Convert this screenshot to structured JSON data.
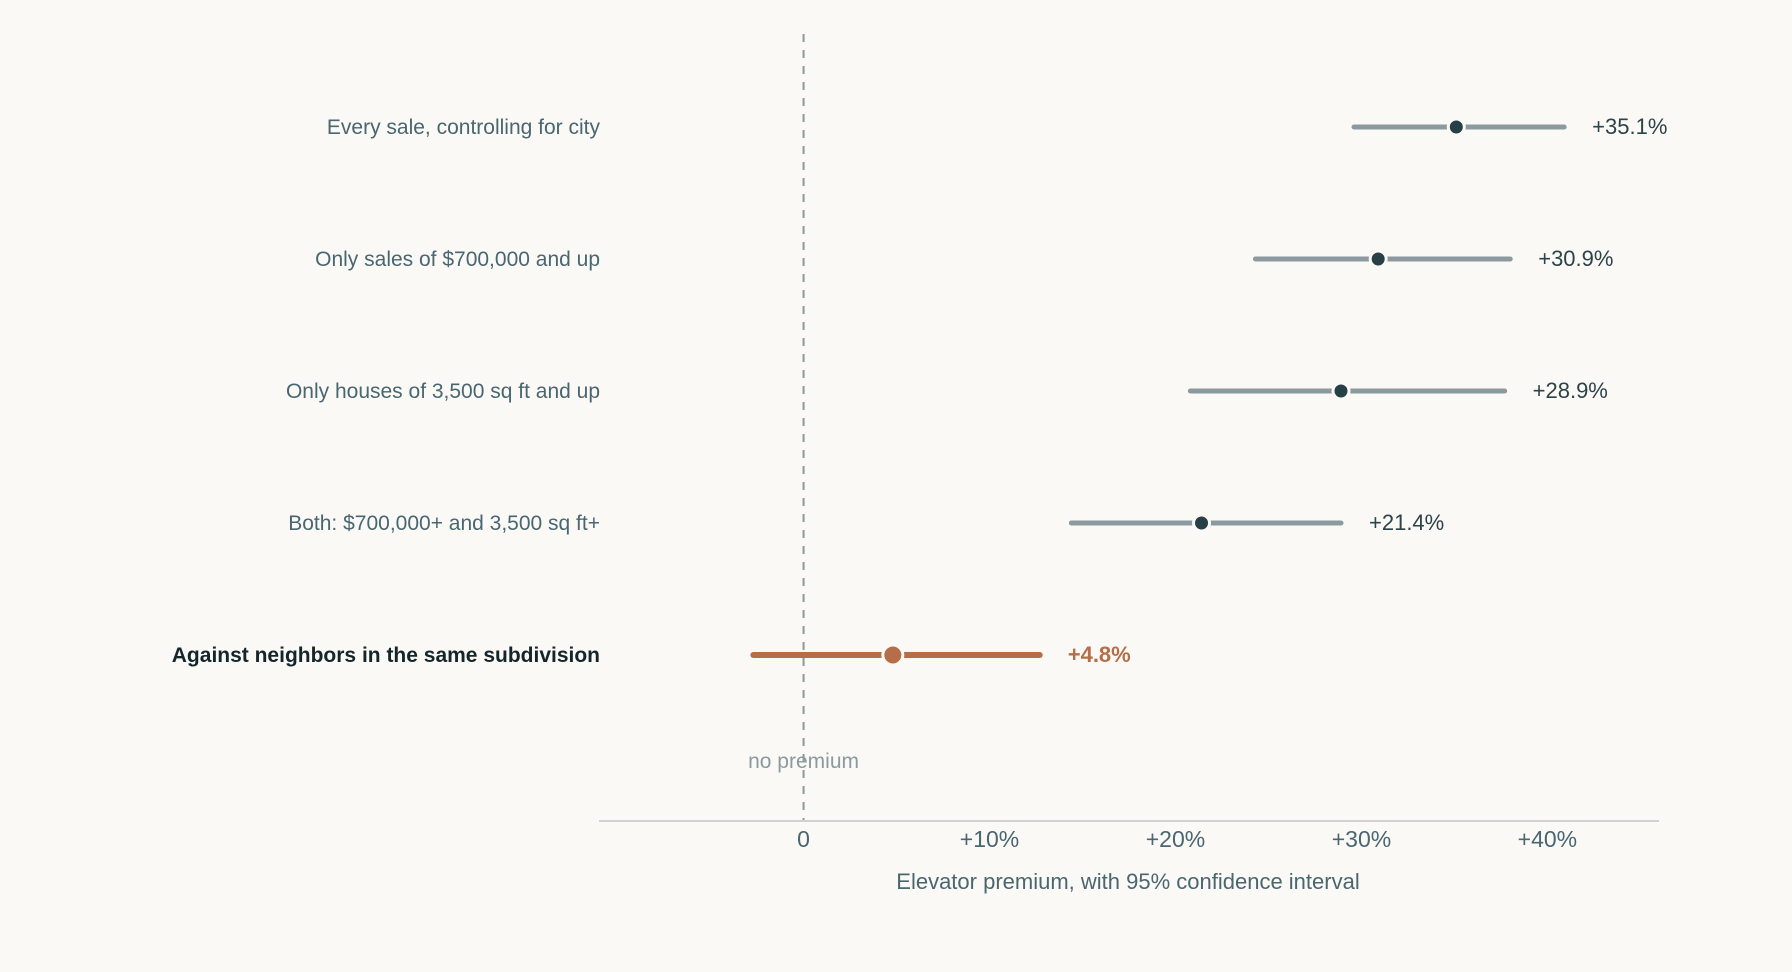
{
  "chart_data": {
    "type": "forest",
    "title": "",
    "xlabel": "Elevator premium, with 95% confidence interval",
    "xlim": [
      -11,
      46
    ],
    "x_ticks": [
      {
        "value": 0,
        "label": "0"
      },
      {
        "value": 10,
        "label": "+10%"
      },
      {
        "value": 20,
        "label": "+20%"
      },
      {
        "value": 30,
        "label": "+30%"
      },
      {
        "value": 40,
        "label": "+40%"
      }
    ],
    "reference_line": {
      "value": 0,
      "label": "no premium",
      "style": "dashed"
    },
    "grid": false,
    "rows": [
      {
        "label": "Every sale, controlling for city",
        "estimate": 35.1,
        "ci_low": 29.6,
        "ci_high": 40.9,
        "value_label": "+35.1%",
        "highlight": false
      },
      {
        "label": "Only sales of $700,000 and up",
        "estimate": 30.9,
        "ci_low": 24.3,
        "ci_high": 38.0,
        "value_label": "+30.9%",
        "highlight": false
      },
      {
        "label": "Only houses of 3,500 sq ft and up",
        "estimate": 28.9,
        "ci_low": 20.8,
        "ci_high": 37.7,
        "value_label": "+28.9%",
        "highlight": false
      },
      {
        "label": "Both: $700,000+ and 3,500 sq ft+",
        "estimate": 21.4,
        "ci_low": 14.4,
        "ci_high": 28.9,
        "value_label": "+21.4%",
        "highlight": false
      },
      {
        "label": "Against neighbors in the same subdivision",
        "estimate": 4.8,
        "ci_low": -2.7,
        "ci_high": 12.7,
        "value_label": "+4.8%",
        "highlight": true
      }
    ],
    "colors": {
      "normal_line": "#8a9a9e",
      "normal_point": "#264046",
      "highlight": "#b56e48",
      "reference": "#8a9a9e",
      "axis": "#cfd2d0"
    }
  }
}
